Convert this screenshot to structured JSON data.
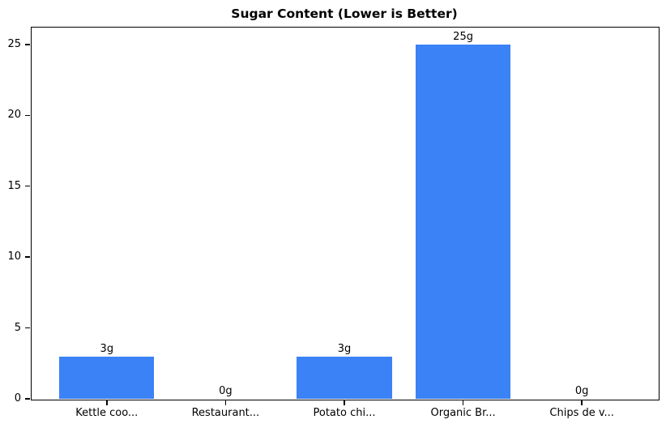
{
  "chart_data": {
    "type": "bar",
    "title": "Sugar Content (Lower is Better)",
    "categories": [
      "Kettle coo...",
      "Restaurant...",
      "Potato chi...",
      "Organic Br...",
      "Chips de v..."
    ],
    "values": [
      3,
      0,
      3,
      25,
      0
    ],
    "bar_value_labels": [
      "3g",
      "0g",
      "3g",
      "25g",
      "0g"
    ],
    "xlabel": "",
    "ylabel": "",
    "yticks": [
      0,
      5,
      10,
      15,
      20,
      25
    ],
    "ylim": [
      0,
      26.25
    ],
    "xlim": [
      -0.64,
      4.64
    ],
    "bar_width_units": 0.8,
    "bar_color": "#3b82f6",
    "grid": "off",
    "legend": "none"
  }
}
